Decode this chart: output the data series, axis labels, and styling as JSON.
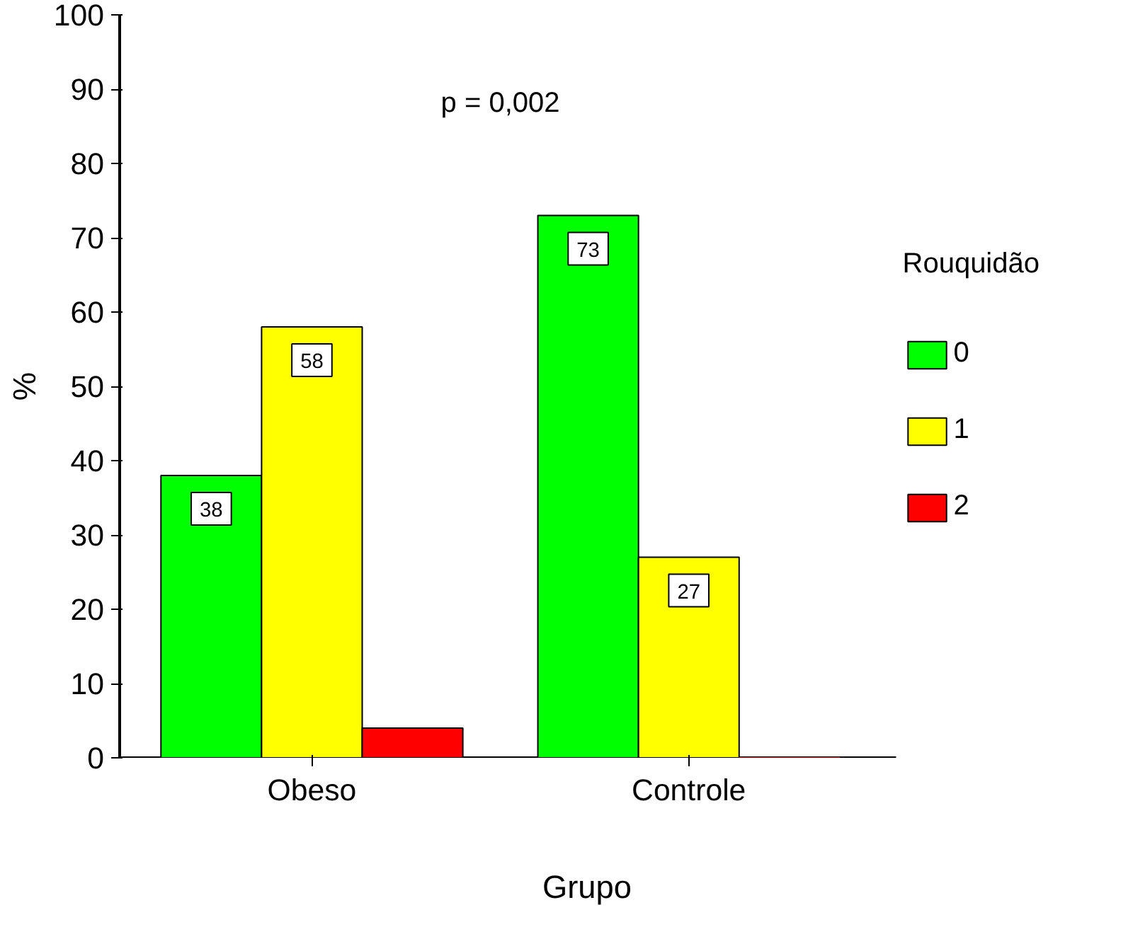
{
  "chart_data": {
    "type": "bar",
    "xlabel": "Grupo",
    "ylabel": "%",
    "legend_title": "Rouquidão",
    "categories": [
      "Obeso",
      "Controle"
    ],
    "series": [
      {
        "name": "0",
        "color": "#00ff00",
        "values": [
          38,
          73
        ],
        "value_labels": [
          "38",
          "73"
        ]
      },
      {
        "name": "1",
        "color": "#ffff00",
        "values": [
          58,
          27
        ],
        "value_labels": [
          "58",
          "27"
        ]
      },
      {
        "name": "2",
        "color": "#ff0000",
        "values": [
          4,
          0
        ],
        "value_labels": [
          null,
          null
        ]
      }
    ],
    "ylim": [
      0,
      100
    ],
    "yticks": [
      0,
      10,
      20,
      30,
      40,
      50,
      60,
      70,
      80,
      90,
      100
    ],
    "grid": false,
    "legend": "right",
    "annotations": [
      {
        "text": "p = 0,002"
      }
    ]
  }
}
